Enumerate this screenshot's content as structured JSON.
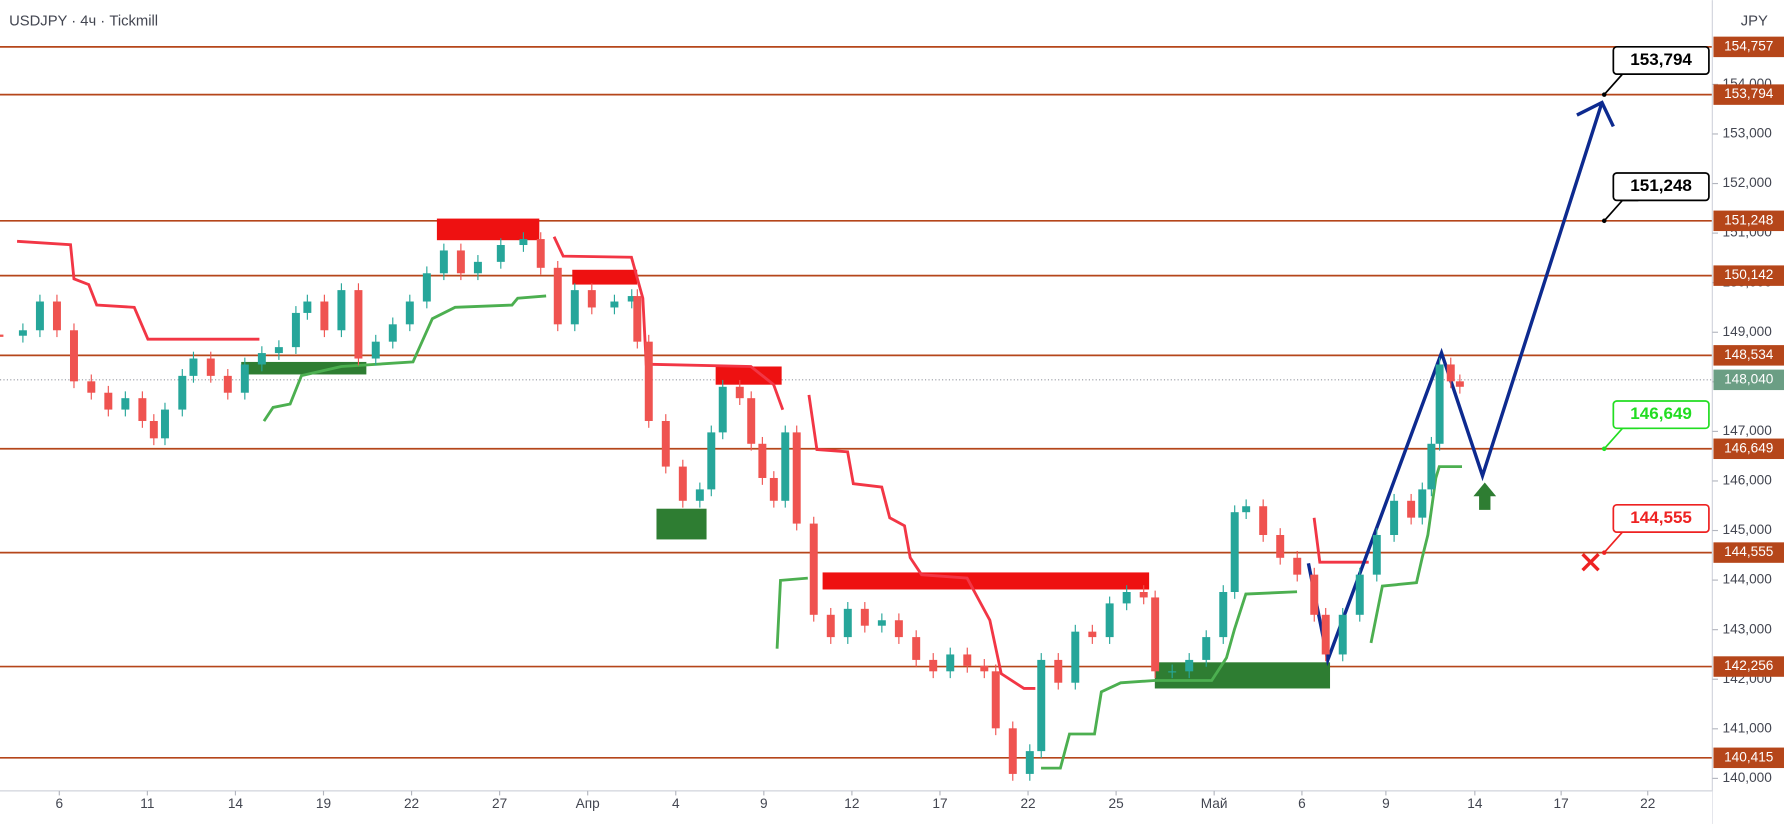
{
  "header": {
    "symbol": "USDJPY · 4ч · Tickmill",
    "currency": "JPY"
  },
  "chart_data": {
    "type": "candlestick",
    "x": [
      -2.02,
      -1.24,
      -0.66,
      -0.08,
      0.5,
      1.09,
      1.67,
      2.25,
      2.83,
      3.22,
      3.6,
      4.19,
      4.57,
      5.16,
      5.74,
      6.32,
      6.9,
      7.48,
      8.06,
      8.45,
      9.03,
      9.61,
      10.19,
      10.78,
      11.36,
      11.94,
      12.52,
      13.1,
      13.68,
      14.26,
      15.04,
      15.81,
      16.4,
      16.98,
      17.56,
      18.14,
      18.91,
      19.5,
      19.69,
      20.08,
      20.66,
      21.24,
      21.82,
      22.21,
      22.6,
      23.18,
      23.57,
      23.95,
      24.34,
      24.73,
      25.12,
      25.7,
      26.28,
      26.86,
      27.44,
      28.02,
      28.6,
      29.19,
      29.77,
      30.35,
      30.93,
      31.51,
      31.9,
      32.48,
      33.06,
      33.45,
      34.03,
      34.61,
      35.19,
      35.78,
      36.36,
      36.94,
      37.33,
      37.91,
      38.49,
      39.07,
      39.65,
      40.04,
      40.43,
      41.01,
      41.59,
      42.17,
      42.75,
      43.14,
      43.72,
      44.3,
      44.88,
      45.47,
      46.05,
      46.43,
      46.74,
      47.02,
      47.4,
      47.71
    ],
    "values": [
      148930,
      149040,
      149620,
      149040,
      148010,
      147780,
      147440,
      147670,
      147210,
      146860,
      147440,
      148120,
      148470,
      148120,
      147780,
      148350,
      148580,
      148700,
      149390,
      149620,
      149040,
      149850,
      148470,
      148810,
      149160,
      149620,
      150190,
      150650,
      150190,
      150420,
      150760,
      150880,
      150300,
      149160,
      149850,
      149500,
      149620,
      149730,
      148810,
      147210,
      146290,
      145600,
      145830,
      146980,
      147900,
      147670,
      146750,
      146060,
      145600,
      146980,
      145140,
      143300,
      142850,
      143420,
      143080,
      143190,
      142850,
      142390,
      142160,
      142500,
      142270,
      142160,
      141010,
      140090,
      140550,
      142390,
      141930,
      142960,
      142850,
      143530,
      143760,
      143650,
      142160,
      142160,
      142390,
      142850,
      143760,
      145370,
      145490,
      144910,
      144450,
      144110,
      143300,
      142500,
      143300,
      144110,
      144910,
      145600,
      145260,
      145830,
      146750,
      148350,
      148010,
      147900
    ],
    "up_color": "#26a69a",
    "down_color": "#ef5350",
    "xlim": [
      -2.02,
      56.31
    ],
    "ylim": [
      139748,
      155700
    ],
    "xticks": [
      {
        "value": 0,
        "label": "6"
      },
      {
        "value": 3,
        "label": "11"
      },
      {
        "value": 6,
        "label": "14"
      },
      {
        "value": 9,
        "label": "19"
      },
      {
        "value": 12,
        "label": "22"
      },
      {
        "value": 15,
        "label": "27"
      },
      {
        "value": 18,
        "label": "Апр"
      },
      {
        "value": 21,
        "label": "4"
      },
      {
        "value": 24,
        "label": "9"
      },
      {
        "value": 27,
        "label": "12"
      },
      {
        "value": 30,
        "label": "17"
      },
      {
        "value": 33,
        "label": "22"
      },
      {
        "value": 36,
        "label": "25"
      },
      {
        "value": 39.34,
        "label": "Май"
      },
      {
        "value": 42.33,
        "label": "6"
      },
      {
        "value": 45.19,
        "label": "9"
      },
      {
        "value": 48.22,
        "label": "14"
      },
      {
        "value": 51.16,
        "label": "17"
      },
      {
        "value": 54.11,
        "label": "22"
      }
    ],
    "yticks": [
      {
        "value": 140000,
        "label": "140,000"
      },
      {
        "value": 141000,
        "label": "141,000"
      },
      {
        "value": 142000,
        "label": "142,000"
      },
      {
        "value": 143000,
        "label": "143,000"
      },
      {
        "value": 144000,
        "label": "144,000"
      },
      {
        "value": 145000,
        "label": "145,000"
      },
      {
        "value": 146000,
        "label": "146,000"
      },
      {
        "value": 147000,
        "label": "147,000"
      },
      {
        "value": 148000,
        "label": "148,000"
      },
      {
        "value": 149000,
        "label": "149,000"
      },
      {
        "value": 150000,
        "label": "150,000"
      },
      {
        "value": 151000,
        "label": "151,000"
      },
      {
        "value": 152000,
        "label": "152,000"
      },
      {
        "value": 153000,
        "label": "153,000"
      },
      {
        "value": 154000,
        "label": "154,000"
      }
    ],
    "levels": [
      {
        "value": 154757,
        "label": "154,757"
      },
      {
        "value": 153794,
        "label": "153,794"
      },
      {
        "value": 151248,
        "label": "151,248"
      },
      {
        "value": 150142,
        "label": "150,142"
      },
      {
        "value": 148534,
        "label": "148,534"
      },
      {
        "value": 146649,
        "label": "146,649"
      },
      {
        "value": 144555,
        "label": "144,555"
      },
      {
        "value": 142256,
        "label": "142,256"
      },
      {
        "value": 140415,
        "label": "140,415"
      }
    ],
    "level_color": "#b5461a",
    "last_price": {
      "value": 148040,
      "label": "148,040"
    },
    "last_price_color": "#6b9e84",
    "callouts": [
      {
        "value": 153794,
        "label": "153,794",
        "color": "#000000"
      },
      {
        "value": 151248,
        "label": "151,248",
        "color": "#000000"
      },
      {
        "value": 146649,
        "label": "146,649",
        "color": "#22dd22"
      },
      {
        "value": 144555,
        "label": "144,555",
        "color": "#ee2222"
      }
    ],
    "grid": false
  }
}
